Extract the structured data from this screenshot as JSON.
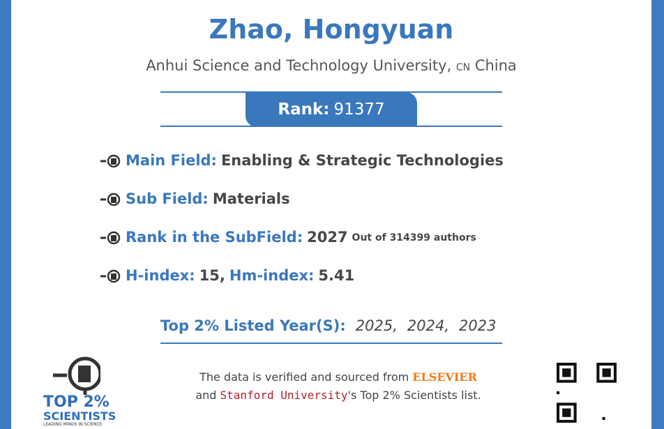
{
  "header": {
    "name": "Zhao, Hongyuan",
    "affiliation": "Anhui Science and Technology University,",
    "country_code": "CN",
    "country": "China"
  },
  "rank": {
    "label": "Rank:",
    "value": "91377"
  },
  "fields": [
    {
      "label": "Main Field:",
      "value": "Enabling & Strategic Technologies"
    },
    {
      "label": "Sub Field:",
      "value": "Materials"
    },
    {
      "label": "Rank in the SubField:",
      "value": "2027",
      "note": "Out of 314399 authors"
    }
  ],
  "indices": {
    "h_label": "H-index:",
    "h_value": "15,",
    "hm_label": "Hm-index:",
    "hm_value": "5.41"
  },
  "years": {
    "label": "Top 2% Listed Year(S):",
    "values": [
      "2025,",
      "2024,",
      "2023"
    ]
  },
  "footer": {
    "line1": "The data is verified and sourced from",
    "elsevier": "ELSEVIER",
    "and": "and",
    "stanford": "Stanford University",
    "tail": "'s Top 2% Scientists list."
  },
  "logo": {
    "top": "TOP 2%",
    "scientists": "SCIENTISTS",
    "tagline": "LEADING MINDS IN SCIENCE"
  }
}
